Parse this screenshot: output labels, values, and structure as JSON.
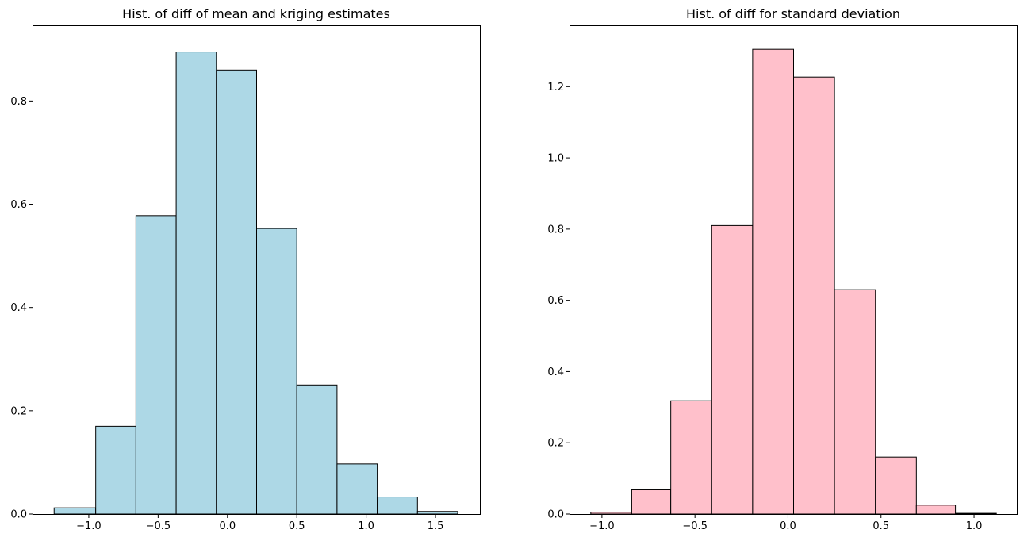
{
  "chart_data": [
    {
      "type": "bar",
      "title": "Hist. of diff of mean and kriging estimates",
      "xlabel": "",
      "ylabel": "",
      "bar_color": "#add8e6",
      "edge_color": "#000000",
      "bin_edges": [
        -1.25,
        -0.95,
        -0.66,
        -0.37,
        -0.08,
        0.21,
        0.5,
        0.79,
        1.08,
        1.37,
        1.66
      ],
      "values": [
        0.012,
        0.17,
        0.578,
        0.895,
        0.86,
        0.553,
        0.25,
        0.097,
        0.033,
        0.005
      ],
      "xlim": [
        -1.4,
        1.82
      ],
      "ylim": [
        0,
        0.945
      ],
      "xticks": [
        {
          "value": -1.0,
          "label": "−1.0"
        },
        {
          "value": -0.5,
          "label": "−0.5"
        },
        {
          "value": 0.0,
          "label": "0.0"
        },
        {
          "value": 0.5,
          "label": "0.5"
        },
        {
          "value": 1.0,
          "label": "1.0"
        },
        {
          "value": 1.5,
          "label": "1.5"
        }
      ],
      "yticks": [
        {
          "value": 0.0,
          "label": "0.0"
        },
        {
          "value": 0.2,
          "label": "0.2"
        },
        {
          "value": 0.4,
          "label": "0.4"
        },
        {
          "value": 0.6,
          "label": "0.6"
        },
        {
          "value": 0.8,
          "label": "0.8"
        }
      ],
      "grid": false
    },
    {
      "type": "bar",
      "title": "Hist. of diff for standard deviation",
      "xlabel": "",
      "ylabel": "",
      "bar_color": "#ffc0cb",
      "edge_color": "#000000",
      "bin_edges": [
        -1.06,
        -0.84,
        -0.63,
        -0.41,
        -0.19,
        0.03,
        0.25,
        0.47,
        0.69,
        0.9,
        1.12
      ],
      "values": [
        0.005,
        0.068,
        0.318,
        0.81,
        1.305,
        1.227,
        0.63,
        0.16,
        0.025,
        0.002
      ],
      "xlim": [
        -1.17,
        1.23
      ],
      "ylim": [
        0,
        1.37
      ],
      "xticks": [
        {
          "value": -1.0,
          "label": "−1.0"
        },
        {
          "value": -0.5,
          "label": "−0.5"
        },
        {
          "value": 0.0,
          "label": "0.0"
        },
        {
          "value": 0.5,
          "label": "0.5"
        },
        {
          "value": 1.0,
          "label": "1.0"
        }
      ],
      "yticks": [
        {
          "value": 0.0,
          "label": "0.0"
        },
        {
          "value": 0.2,
          "label": "0.2"
        },
        {
          "value": 0.4,
          "label": "0.4"
        },
        {
          "value": 0.6,
          "label": "0.6"
        },
        {
          "value": 0.8,
          "label": "0.8"
        },
        {
          "value": 1.0,
          "label": "1.0"
        },
        {
          "value": 1.2,
          "label": "1.2"
        }
      ],
      "grid": false
    }
  ]
}
